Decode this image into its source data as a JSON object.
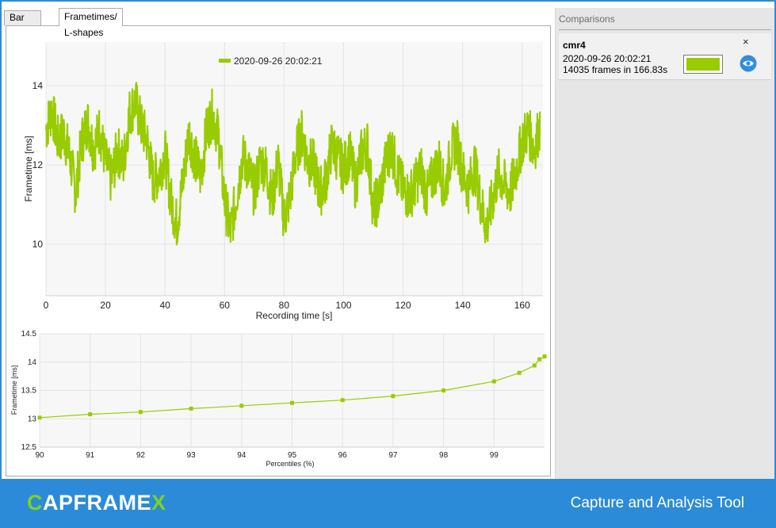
{
  "tabs": [
    {
      "label": "Bar charts"
    },
    {
      "label": "Frametimes/ L-shapes"
    }
  ],
  "comparisons": {
    "title": "Comparisons",
    "close_glyph": "×",
    "items": [
      {
        "name": "cmr4",
        "date": "2020-09-26 20:02:21",
        "frames": "14035 frames in 166.83s",
        "color": "#99cc00",
        "visibility_icon": "eye-icon"
      }
    ]
  },
  "footer": {
    "logo_first": "C",
    "logo_middle": "APFRAME",
    "logo_last": "X",
    "tagline": "Capture and Analysis Tool"
  },
  "chart_data": [
    {
      "type": "line",
      "title": "",
      "xlabel": "Recording time [s]",
      "ylabel": "Frametime [ms]",
      "xlim": [
        0,
        167
      ],
      "ylim": [
        8.7,
        15.1
      ],
      "xticks": [
        "0",
        "20",
        "40",
        "60",
        "80",
        "100",
        "120",
        "140",
        "160"
      ],
      "yticks": [
        "10",
        "12",
        "14"
      ],
      "grid": true,
      "legend_position": "top-left",
      "series": [
        {
          "name": "2020-09-26 20:02:21",
          "color": "#99cc00",
          "x": [
            0,
            2,
            4,
            6,
            8,
            10,
            12,
            14,
            16,
            18,
            20,
            22,
            24,
            26,
            28,
            30,
            32,
            34,
            36,
            38,
            40,
            42,
            44,
            46,
            48,
            50,
            52,
            54,
            56,
            58,
            60,
            62,
            64,
            66,
            68,
            70,
            72,
            74,
            76,
            78,
            80,
            82,
            84,
            86,
            88,
            90,
            92,
            94,
            96,
            98,
            100,
            102,
            104,
            106,
            108,
            110,
            112,
            114,
            116,
            118,
            120,
            122,
            124,
            126,
            128,
            130,
            132,
            134,
            136,
            138,
            140,
            142,
            144,
            146,
            148,
            150,
            152,
            154,
            156,
            158,
            160,
            162,
            164,
            166
          ],
          "y": [
            12.9,
            13.4,
            12.6,
            12.8,
            12.2,
            11.3,
            12.6,
            13.1,
            12.4,
            12.9,
            12.1,
            11.6,
            12.4,
            12.0,
            13.3,
            13.6,
            13.0,
            12.6,
            11.6,
            11.8,
            12.3,
            11.1,
            10.5,
            11.6,
            12.8,
            12.2,
            11.7,
            12.9,
            13.3,
            12.7,
            11.1,
            10.3,
            11.2,
            12.2,
            11.9,
            11.3,
            12.1,
            11.9,
            11.1,
            12.1,
            10.6,
            11.2,
            12.3,
            12.8,
            12.1,
            12.0,
            11.3,
            11.6,
            12.5,
            12.2,
            11.9,
            12.3,
            11.5,
            12.3,
            12.5,
            10.9,
            11.2,
            12.0,
            12.5,
            11.8,
            11.4,
            11.2,
            11.5,
            11.9,
            11.2,
            11.7,
            12.1,
            11.3,
            12.3,
            12.6,
            11.8,
            11.4,
            12.0,
            11.1,
            10.4,
            11.1,
            11.8,
            11.5,
            11.3,
            11.9,
            12.6,
            12.9,
            12.4,
            13.0
          ]
        }
      ]
    },
    {
      "type": "line",
      "title": "",
      "xlabel": "Percentiles (%)",
      "ylabel": "Frametime [ms]",
      "xlim": [
        90,
        100
      ],
      "ylim": [
        12.5,
        14.5
      ],
      "xticks": [
        "90",
        "91",
        "92",
        "93",
        "94",
        "95",
        "96",
        "97",
        "98",
        "99"
      ],
      "yticks": [
        "12.5",
        "13",
        "13.5",
        "14",
        "14.5"
      ],
      "grid": true,
      "series": [
        {
          "color": "#99cc00",
          "x": [
            90,
            91,
            92,
            93,
            94,
            95,
            96,
            97,
            98,
            99,
            99.5,
            99.8,
            99.9,
            100
          ],
          "y": [
            13.02,
            13.08,
            13.12,
            13.18,
            13.23,
            13.28,
            13.33,
            13.4,
            13.5,
            13.66,
            13.81,
            13.94,
            14.05,
            14.1
          ]
        }
      ]
    }
  ]
}
